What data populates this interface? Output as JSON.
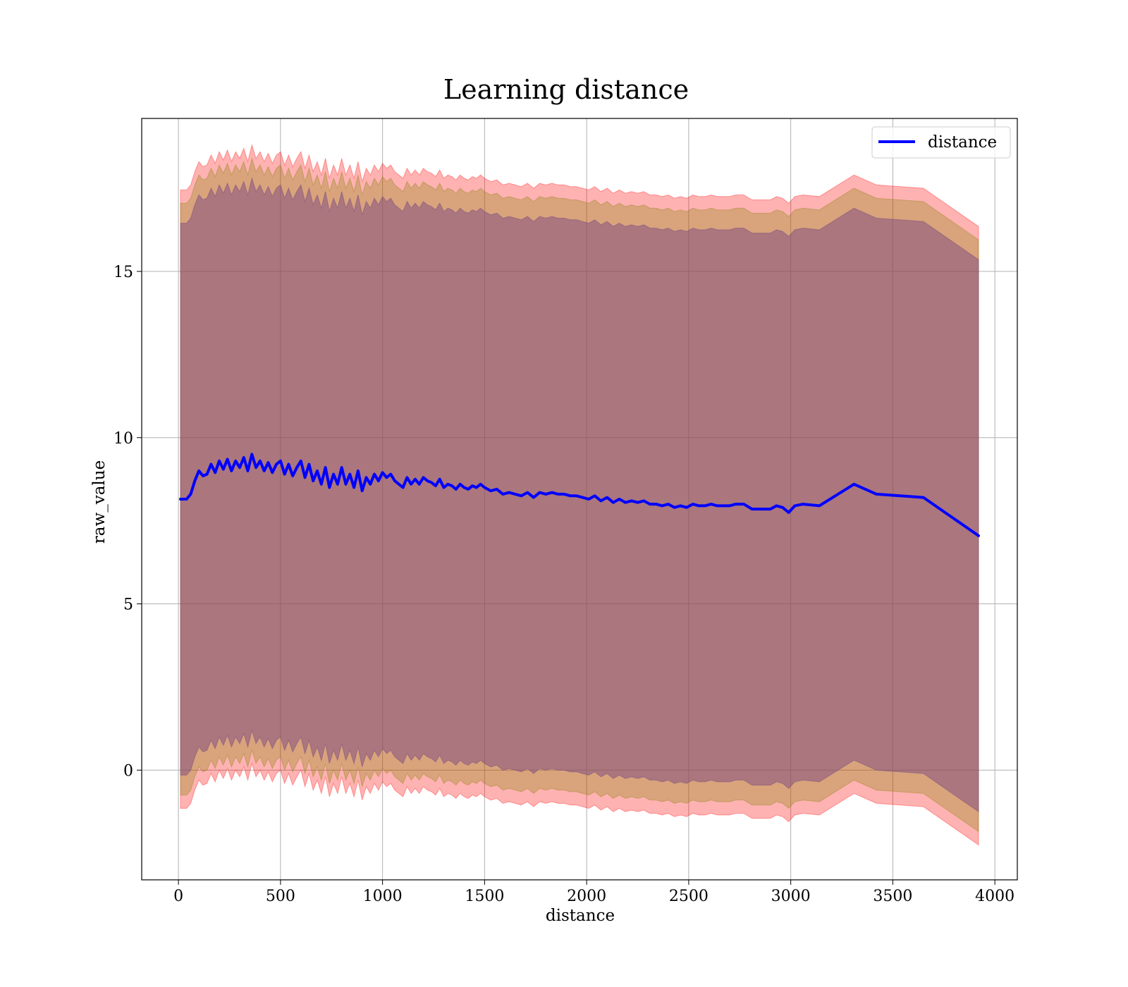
{
  "chart_data": {
    "type": "line",
    "title": "Learning distance",
    "xlabel": "distance",
    "ylabel": "raw_value",
    "xlim": [
      -180,
      4110
    ],
    "ylim": [
      -3.3,
      19.6
    ],
    "x_ticks": [
      0,
      500,
      1000,
      1500,
      2000,
      2500,
      3000,
      3500,
      4000
    ],
    "x_tick_labels": [
      "0",
      "500",
      "1000",
      "1500",
      "2000",
      "2500",
      "3000",
      "3500",
      "4000"
    ],
    "y_ticks": [
      0,
      5,
      10,
      15
    ],
    "y_tick_labels": [
      "0",
      "5",
      "10",
      "15"
    ],
    "grid": true,
    "legend_position": "top-right",
    "series": [
      {
        "name": "distance",
        "color": "#0000ff",
        "x": [
          10,
          40,
          60,
          80,
          100,
          120,
          140,
          160,
          180,
          200,
          220,
          240,
          260,
          280,
          300,
          320,
          340,
          360,
          380,
          400,
          420,
          440,
          460,
          480,
          500,
          520,
          540,
          560,
          580,
          600,
          620,
          640,
          660,
          680,
          700,
          720,
          740,
          760,
          780,
          800,
          820,
          840,
          860,
          880,
          900,
          920,
          940,
          960,
          980,
          1000,
          1020,
          1040,
          1060,
          1080,
          1100,
          1120,
          1140,
          1160,
          1180,
          1200,
          1220,
          1240,
          1260,
          1280,
          1300,
          1320,
          1340,
          1360,
          1380,
          1400,
          1420,
          1440,
          1460,
          1480,
          1500,
          1530,
          1560,
          1590,
          1620,
          1650,
          1680,
          1710,
          1740,
          1770,
          1800,
          1830,
          1860,
          1890,
          1920,
          1950,
          1980,
          2010,
          2040,
          2070,
          2100,
          2130,
          2160,
          2190,
          2220,
          2250,
          2280,
          2310,
          2340,
          2370,
          2400,
          2430,
          2460,
          2490,
          2520,
          2550,
          2580,
          2610,
          2640,
          2670,
          2700,
          2730,
          2770,
          2810,
          2860,
          2900,
          2930,
          2960,
          2990,
          3020,
          3060,
          3140,
          3310,
          3420,
          3650,
          3920
        ],
        "values": [
          8.15,
          8.15,
          8.3,
          8.7,
          9.0,
          8.85,
          8.9,
          9.2,
          8.95,
          9.3,
          9.05,
          9.35,
          9.0,
          9.3,
          9.1,
          9.4,
          9.0,
          9.5,
          9.1,
          9.3,
          9.0,
          9.25,
          8.95,
          9.2,
          9.3,
          8.9,
          9.2,
          8.85,
          9.1,
          9.3,
          8.8,
          9.2,
          8.7,
          9.0,
          8.6,
          9.1,
          8.5,
          8.9,
          8.6,
          9.1,
          8.6,
          8.9,
          8.5,
          9.0,
          8.4,
          8.8,
          8.6,
          8.9,
          8.7,
          8.95,
          8.8,
          8.9,
          8.7,
          8.6,
          8.5,
          8.8,
          8.6,
          8.75,
          8.6,
          8.8,
          8.7,
          8.65,
          8.55,
          8.75,
          8.5,
          8.6,
          8.55,
          8.45,
          8.6,
          8.5,
          8.45,
          8.55,
          8.5,
          8.6,
          8.5,
          8.4,
          8.45,
          8.3,
          8.35,
          8.3,
          8.25,
          8.35,
          8.2,
          8.35,
          8.3,
          8.35,
          8.3,
          8.3,
          8.25,
          8.25,
          8.2,
          8.15,
          8.25,
          8.1,
          8.2,
          8.05,
          8.15,
          8.05,
          8.1,
          8.05,
          8.1,
          8.0,
          8.0,
          7.95,
          8.0,
          7.9,
          7.95,
          7.9,
          8.0,
          7.95,
          7.95,
          8.0,
          7.95,
          7.95,
          7.95,
          8.0,
          8.0,
          7.85,
          7.85,
          7.85,
          7.95,
          7.9,
          7.75,
          7.95,
          8.0,
          7.95,
          8.6,
          8.3,
          8.2,
          7.05
        ]
      }
    ],
    "bands": [
      {
        "color": "#ff0000",
        "opacity": 0.3,
        "upper_offset": 9.3,
        "lower_offset": -9.3
      },
      {
        "color": "#808000",
        "opacity": 0.3,
        "upper_offset": 8.9,
        "lower_offset": -8.9
      },
      {
        "color": "#800080",
        "opacity": 0.3,
        "upper_offset": 8.3,
        "lower_offset": -8.3
      },
      {
        "color": "#808080",
        "opacity": 0.3,
        "upper_offset": 8.3,
        "lower_offset": -8.3
      }
    ]
  }
}
